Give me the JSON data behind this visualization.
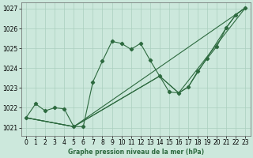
{
  "title": "Graphe pression niveau de la mer (hPa)",
  "background_color": "#cce8dc",
  "grid_color": "#aacfbe",
  "line_color": "#2d6a3f",
  "xlim": [
    -0.5,
    23.5
  ],
  "ylim": [
    1020.6,
    1027.3
  ],
  "yticks": [
    1021,
    1022,
    1023,
    1024,
    1025,
    1026,
    1027
  ],
  "xticks": [
    0,
    1,
    2,
    3,
    4,
    5,
    6,
    7,
    8,
    9,
    10,
    11,
    12,
    13,
    14,
    15,
    16,
    17,
    18,
    19,
    20,
    21,
    22,
    23
  ],
  "line1_x": [
    0,
    1,
    2,
    3,
    4,
    5,
    6,
    7,
    8,
    9,
    10,
    11,
    12,
    13,
    14,
    15,
    16,
    17,
    18,
    19,
    20,
    21,
    22,
    23
  ],
  "line1_y": [
    1021.5,
    1022.2,
    1021.85,
    1022.0,
    1021.95,
    1021.05,
    1021.05,
    1023.3,
    1024.35,
    1025.35,
    1025.25,
    1024.95,
    1025.25,
    1024.4,
    1023.6,
    1022.8,
    1022.75,
    1023.05,
    1023.85,
    1024.5,
    1025.1,
    1026.05,
    1026.7,
    1027.05
  ],
  "line2_x": [
    0,
    5,
    23
  ],
  "line2_y": [
    1021.5,
    1021.05,
    1027.05
  ],
  "line3_x": [
    0,
    5,
    14,
    16,
    23
  ],
  "line3_y": [
    1021.5,
    1021.05,
    1023.6,
    1022.75,
    1027.05
  ],
  "line4_x": [
    0,
    5,
    14,
    16,
    17,
    21,
    22,
    23
  ],
  "line4_y": [
    1021.5,
    1021.05,
    1023.6,
    1022.75,
    1023.05,
    1026.05,
    1026.7,
    1027.05
  ],
  "ylabel_fontsize": 5.5,
  "tick_fontsize": 5.5
}
